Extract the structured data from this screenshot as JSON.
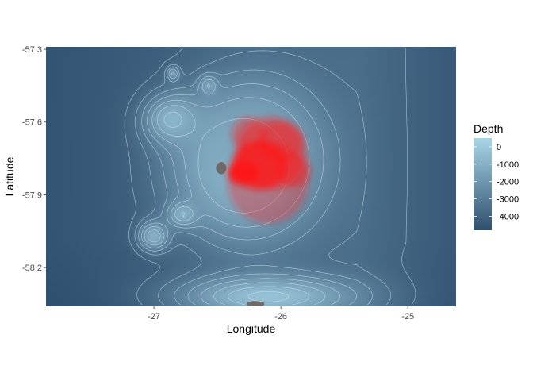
{
  "chart_data": {
    "type": "heatmap",
    "title": "",
    "xlabel": "Longitude",
    "ylabel": "Latitude",
    "xlim": [
      -27.85,
      -24.62
    ],
    "ylim": [
      -58.36,
      -57.29
    ],
    "x_ticks": [
      -27,
      -26,
      -25
    ],
    "x_tick_labels": [
      "-27",
      "-26",
      "-25"
    ],
    "y_ticks": [
      -57.3,
      -57.6,
      -57.9,
      -58.2
    ],
    "y_tick_labels": [
      "-57.3",
      "-57.6",
      "-57.9",
      "-58.2"
    ],
    "legend": {
      "title": "Depth",
      "placement": "right",
      "breaks": [
        0,
        -1000,
        -2000,
        -3000,
        -4000
      ],
      "labels": [
        "0",
        "-1000",
        "-2000",
        "-3000",
        "-4000"
      ],
      "range": [
        -4800,
        500
      ],
      "color_low": "#2f4f6e",
      "color_high": "#a8d6e8"
    },
    "land_color": "#6b6b6b",
    "contour_color": "#d9e6ef",
    "density_color": "#ff1a1a",
    "grid": false,
    "land": [
      {
        "lon": -26.47,
        "lat": -57.79,
        "rlon": 0.04,
        "rlat": 0.025
      },
      {
        "lon": -26.2,
        "lat": -58.35,
        "rlon": 0.07,
        "rlat": 0.012
      }
    ],
    "seamounts": [
      {
        "lon": -26.3,
        "lat": -57.78,
        "depth": -200,
        "rlon": 0.55,
        "rlat": 0.3
      },
      {
        "lon": -26.85,
        "lat": -57.59,
        "depth": -700,
        "rlon": 0.22,
        "rlat": 0.1
      },
      {
        "lon": -26.57,
        "lat": -57.45,
        "depth": -1400,
        "rlon": 0.07,
        "rlat": 0.04
      },
      {
        "lon": -26.85,
        "lat": -57.4,
        "depth": -1800,
        "rlon": 0.05,
        "rlat": 0.03
      },
      {
        "lon": -26.77,
        "lat": -57.98,
        "depth": -900,
        "rlon": 0.12,
        "rlat": 0.05
      },
      {
        "lon": -27.0,
        "lat": -58.07,
        "depth": -1000,
        "rlon": 0.12,
        "rlat": 0.06
      },
      {
        "lon": -26.1,
        "lat": -58.32,
        "depth": -300,
        "rlon": 0.7,
        "rlat": 0.09
      },
      {
        "lon": -26.2,
        "lat": -57.72,
        "depth": -1500,
        "rlon": 0.45,
        "rlat": 0.25
      }
    ],
    "density": [
      {
        "lon": -26.3,
        "lat": -57.81,
        "rlon": 0.12,
        "rlat": 0.05,
        "alpha": 0.9
      },
      {
        "lon": -26.17,
        "lat": -57.78,
        "rlon": 0.22,
        "rlat": 0.1,
        "alpha": 0.7
      },
      {
        "lon": -26.08,
        "lat": -57.73,
        "rlon": 0.28,
        "rlat": 0.15,
        "alpha": 0.45
      },
      {
        "lon": -26.1,
        "lat": -57.85,
        "rlon": 0.32,
        "rlat": 0.17,
        "alpha": 0.35
      },
      {
        "lon": -26.0,
        "lat": -57.68,
        "rlon": 0.18,
        "rlat": 0.08,
        "alpha": 0.45
      },
      {
        "lon": -26.25,
        "lat": -57.65,
        "rlon": 0.14,
        "rlat": 0.07,
        "alpha": 0.4
      },
      {
        "lon": -25.9,
        "lat": -57.8,
        "rlon": 0.14,
        "rlat": 0.07,
        "alpha": 0.4
      }
    ]
  }
}
